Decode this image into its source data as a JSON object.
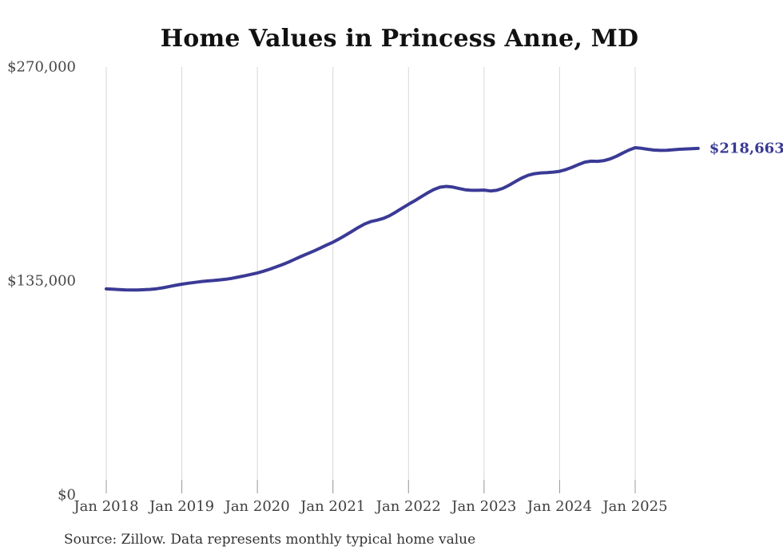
{
  "chart_data": {
    "type": "line",
    "title": "Home Values in Princess Anne, MD",
    "source_note": "Source: Zillow. Data represents monthly typical home value",
    "interval": "monthly",
    "start_month": "Jan 2018",
    "end_month": "Nov 2025",
    "x_ticks": [
      "Jan 2018",
      "Jan 2019",
      "Jan 2020",
      "Jan 2021",
      "Jan 2022",
      "Jan 2023",
      "Jan 2024",
      "Jan 2025"
    ],
    "y_ticks": [
      {
        "value": 270000,
        "label": "$270,000"
      },
      {
        "value": 135000,
        "label": "$135,000"
      },
      {
        "value": 0,
        "label": "$0"
      }
    ],
    "ylim": [
      0,
      270000
    ],
    "grid": "vertical-only",
    "legend": "none",
    "end_label": "$218,663",
    "final_value": 218663,
    "colors": {
      "line": "#3a3a96",
      "end_label": "#3a3a96",
      "grid": "#d7d7d7",
      "tick": "#9c9c9c",
      "title": "#111111",
      "axis_text": "#3f3f3f"
    },
    "series": [
      {
        "name": "Typical home value",
        "values": [
          130000,
          129800,
          129600,
          129400,
          129300,
          129300,
          129500,
          129700,
          130100,
          130700,
          131500,
          132300,
          133000,
          133600,
          134100,
          134600,
          135000,
          135300,
          135700,
          136100,
          136700,
          137500,
          138300,
          139200,
          140100,
          141200,
          142500,
          143900,
          145400,
          147000,
          148800,
          150600,
          152300,
          154000,
          155800,
          157700,
          159500,
          161600,
          163900,
          166300,
          168700,
          170900,
          172500,
          173400,
          174500,
          176200,
          178500,
          181000,
          183400,
          185700,
          188100,
          190500,
          192700,
          194200,
          194700,
          194300,
          193400,
          192600,
          192200,
          192200,
          192400,
          191800,
          192200,
          193500,
          195500,
          197800,
          200000,
          201700,
          202700,
          203200,
          203400,
          203700,
          204200,
          205300,
          206800,
          208500,
          210000,
          210600,
          210500,
          210900,
          212000,
          213700,
          215700,
          217600,
          219100,
          218700,
          218100,
          217600,
          217400,
          217500,
          217800,
          218100,
          218300,
          218500,
          218663
        ]
      }
    ]
  }
}
